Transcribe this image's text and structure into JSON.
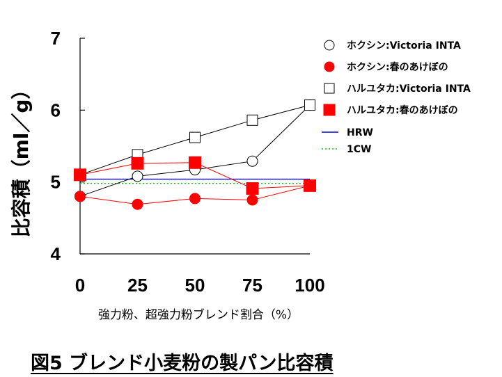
{
  "chart_data": {
    "type": "line",
    "title": "",
    "xlabel": "強力粉、超強力粉ブレンド割合（%）",
    "ylabel": "比容積（ml／g）",
    "x": [
      0,
      25,
      50,
      75,
      100
    ],
    "xticks": [
      "0",
      "25",
      "50",
      "75",
      "100"
    ],
    "yticks": [
      "4",
      "5",
      "6",
      "7"
    ],
    "ylim": [
      4,
      7
    ],
    "xlim": [
      0,
      100
    ],
    "grid": false,
    "legend_position": "top-right",
    "series": [
      {
        "name": "ホクシン:Victoria INTA",
        "marker": "open-circle",
        "color": "#000000",
        "values": [
          4.8,
          5.08,
          5.17,
          5.29,
          6.07
        ]
      },
      {
        "name": "ホクシン:春のあけぼの",
        "marker": "filled-circle",
        "color": "#ff0000",
        "values": [
          4.8,
          4.69,
          4.77,
          4.75,
          4.95
        ]
      },
      {
        "name": "ハルユタカ:Victoria INTA",
        "marker": "open-square",
        "color": "#000000",
        "values": [
          5.1,
          5.38,
          5.62,
          5.86,
          6.07
        ]
      },
      {
        "name": "ハルユタカ:春のあけぼの",
        "marker": "filled-square",
        "color": "#ff0000",
        "values": [
          5.1,
          5.26,
          5.27,
          4.91,
          4.95
        ]
      }
    ],
    "reference_lines": [
      {
        "name": "HRW",
        "value": 5.04,
        "color": "#0000cc",
        "style": "solid"
      },
      {
        "name": "1CW",
        "value": 4.98,
        "color": "#00cc00",
        "style": "dotted"
      }
    ]
  },
  "caption": "図5  ブレンド小麦粉の製パン比容積"
}
